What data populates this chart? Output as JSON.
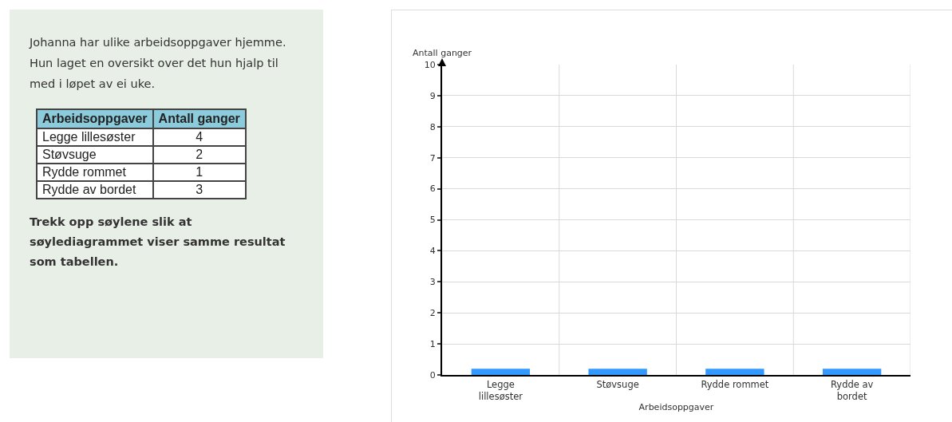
{
  "chart_data": [
    {
      "type": "other",
      "annotations": [
        "Johanna har ulike arbeidsoppgaver hjemme.",
        "Hun laget en oversikt over det hun hjalp til med i løpet av ei uke.",
        "Trekk opp søylene slik at søylediagrammet viser samme resultat som tabellen."
      ],
      "xlabel": "Arbeidsoppgaver",
      "ylabel": "Antall ganger",
      "categories": [
        "Legge lillesøster",
        "Støvsuge",
        "Rydde rommet",
        "Rydde av bordet"
      ],
      "values": [
        4,
        2,
        1,
        3
      ],
      "data_labels": true
    },
    {
      "type": "bar",
      "xlabel": "Arbeidsoppgaver",
      "ylabel": "Antall ganger",
      "categories": [
        "Legge lillesøster",
        "Støvsuge",
        "Rydde rommet",
        "Rydde av bordet"
      ],
      "values": [
        0.2,
        0.2,
        0.2,
        0.2
      ],
      "color": "#3399ff",
      "ylim": [
        0,
        10
      ],
      "yticks": [
        0,
        1,
        2,
        3,
        4,
        5,
        6,
        7,
        8,
        9,
        10
      ],
      "grid": true
    }
  ]
}
